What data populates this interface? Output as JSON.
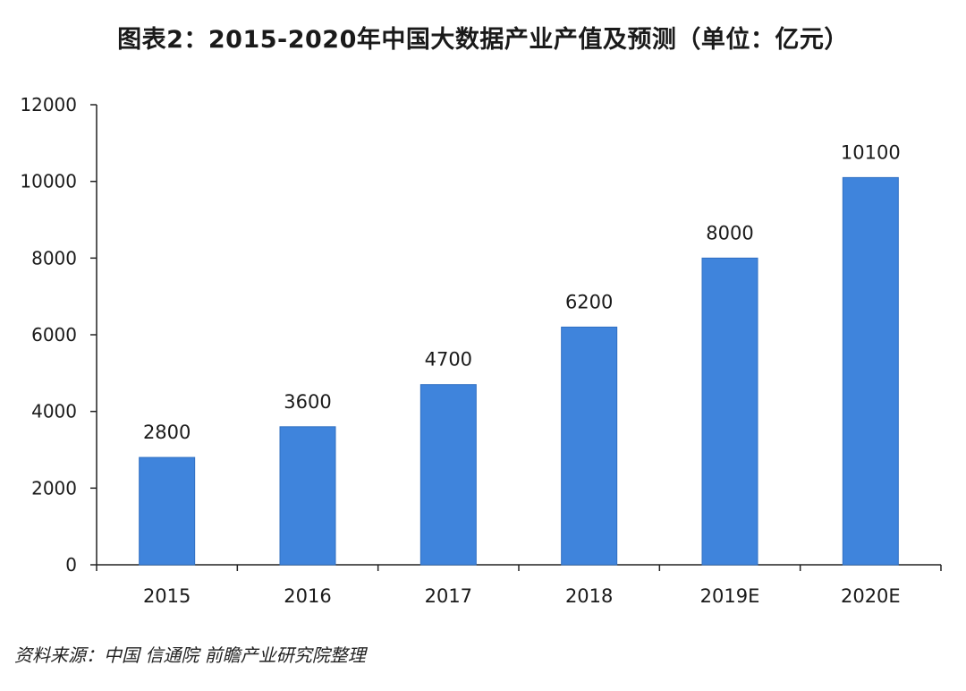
{
  "title": "图表2：2015-2020年中国大数据产业产值及预测（单位：亿元）",
  "source": "资料来源：中国 信通院  前瞻产业研究院整理",
  "colors": {
    "bar": "#3f84dc",
    "bar_edge": "#2f6fc2",
    "axis": "#222222",
    "text": "#1a1a1a"
  },
  "chart_data": {
    "type": "bar",
    "categories": [
      "2015",
      "2016",
      "2017",
      "2018",
      "2019E",
      "2020E"
    ],
    "values": [
      2800,
      3600,
      4700,
      6200,
      8000,
      10100
    ],
    "data_labels": [
      "2800",
      "3600",
      "4700",
      "6200",
      "8000",
      "10100"
    ],
    "ylim": [
      0,
      12000
    ],
    "yticks": [
      0,
      2000,
      4000,
      6000,
      8000,
      10000,
      12000
    ],
    "ytick_labels": [
      "0",
      "2000",
      "4000",
      "6000",
      "8000",
      "10000",
      "12000"
    ],
    "xlabel": "",
    "ylabel": "",
    "grid": false,
    "legend": "none"
  }
}
